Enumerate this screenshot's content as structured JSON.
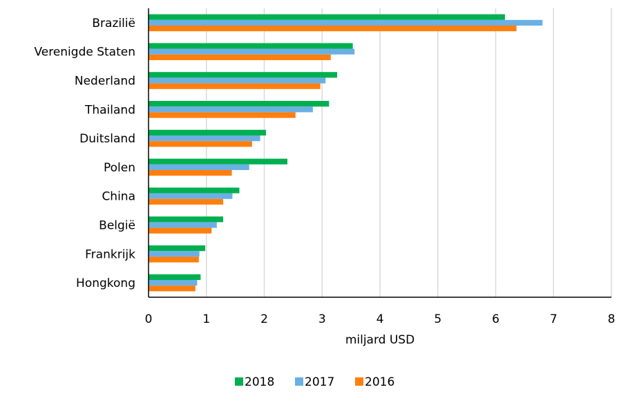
{
  "chart_data": {
    "type": "bar",
    "orientation": "horizontal",
    "categories": [
      "Brazilië",
      "Verenigde Staten",
      "Nederland",
      "Thailand",
      "Duitsland",
      "Polen",
      "China",
      "België",
      "Frankrijk",
      "Hongkong"
    ],
    "series": [
      {
        "name": "2018",
        "color": "#00b050",
        "values": [
          6.16,
          3.53,
          3.26,
          3.12,
          2.03,
          2.4,
          1.57,
          1.29,
          0.98,
          0.9
        ]
      },
      {
        "name": "2017",
        "color": "#6ab0e4",
        "values": [
          6.81,
          3.56,
          3.06,
          2.84,
          1.93,
          1.74,
          1.45,
          1.18,
          0.88,
          0.84
        ]
      },
      {
        "name": "2016",
        "color": "#ff7f0e",
        "values": [
          6.36,
          3.15,
          2.97,
          2.54,
          1.79,
          1.44,
          1.29,
          1.09,
          0.87,
          0.81
        ]
      }
    ],
    "xlim": [
      0,
      8
    ],
    "xticks": [
      0,
      1,
      2,
      3,
      4,
      5,
      6,
      7,
      8
    ],
    "xlabel": "miljard USD",
    "ylabel": "",
    "title": "",
    "grid": "vertical",
    "legend": "bottom"
  }
}
